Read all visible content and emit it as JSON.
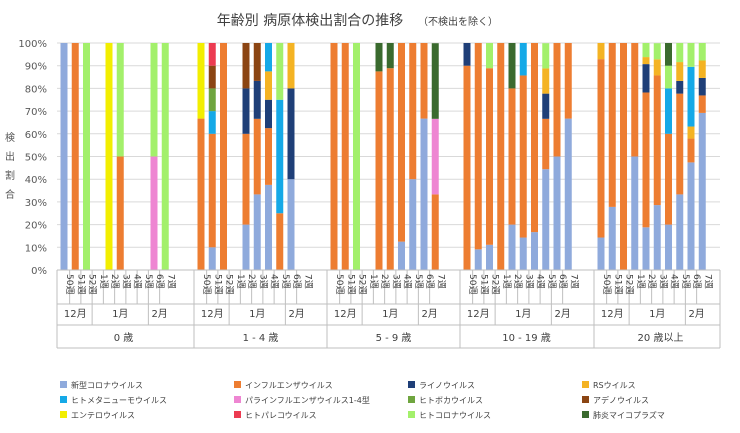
{
  "chart_data": {
    "type": "bar",
    "stacked": "percent",
    "title": "年齢別 病原体検出割合の推移",
    "subtitle": "（不検出を除く）",
    "ylabel": "検出割合",
    "ylim": [
      0,
      100
    ],
    "yticks": [
      "0%",
      "10%",
      "20%",
      "30%",
      "40%",
      "50%",
      "60%",
      "70%",
      "80%",
      "90%",
      "100%"
    ],
    "week_labels": [
      "50週",
      "51週",
      "52週",
      "1週",
      "2週",
      "3週",
      "4週",
      "5週",
      "6週",
      "7週"
    ],
    "month_groups": [
      {
        "label": "12月",
        "start": 0,
        "end": 2
      },
      {
        "label": "1月",
        "start": 3,
        "end": 7
      },
      {
        "label": "2月",
        "start": 8,
        "end": 9
      }
    ],
    "age_groups": [
      "0 歳",
      "1 - 4 歳",
      "5 - 9 歳",
      "10 - 19 歳",
      "20 歳以上"
    ],
    "pathogens": [
      {
        "name": "新型コロナウイルス",
        "color": "#8FAADC"
      },
      {
        "name": "インフルエンザウイルス",
        "color": "#ED7D31"
      },
      {
        "name": "ライノウイルス",
        "color": "#1F3F78"
      },
      {
        "name": "RSウイルス",
        "color": "#F4B323"
      },
      {
        "name": "ヒトメタニューモウイルス",
        "color": "#15A9E7"
      },
      {
        "name": "パラインフルエンザウイルス1-4型",
        "color": "#EE86D2"
      },
      {
        "name": "ヒトボカウイルス",
        "color": "#6FA53F"
      },
      {
        "name": "アデノウイルス",
        "color": "#8B4513"
      },
      {
        "name": "エンテロウイルス",
        "color": "#F2EE00"
      },
      {
        "name": "ヒトパレコウイルス",
        "color": "#EC3B51"
      },
      {
        "name": "ヒトコロナウイルス",
        "color": "#A3F06B"
      },
      {
        "name": "肺炎マイコプラズマ",
        "color": "#3A6A2E"
      }
    ],
    "series_values": [
      [
        {
          "新型コロナウイルス": 100
        },
        {
          "インフルエンザウイルス": 100
        },
        {
          "ヒトコロナウイルス": 100
        },
        {},
        {
          "エンテロウイルス": 100
        },
        {
          "インフルエンザウイルス": 50,
          "ヒトコロナウイルス": 50
        },
        {},
        {},
        {
          "パラインフルエンザウイルス1-4型": 50,
          "ヒトコロナウイルス": 50
        },
        {
          "ヒトコロナウイルス": 100
        }
      ],
      [
        {
          "インフルエンザウイルス": 66.7,
          "エンテロウイルス": 33.3
        },
        {
          "新型コロナウイルス": 10,
          "インフルエンザウイルス": 50,
          "ヒトメタニューモウイルス": 10,
          "ヒトボカウイルス": 10,
          "アデノウイルス": 10,
          "ヒトパレコウイルス": 10
        },
        {
          "インフルエンザウイルス": 100
        },
        {},
        {
          "新型コロナウイルス": 20,
          "インフルエンザウイルス": 40,
          "ライノウイルス": 20,
          "アデノウイルス": 20
        },
        {
          "新型コロナウイルス": 33.3,
          "インフルエンザウイルス": 33.3,
          "ライノウイルス": 16.7,
          "アデノウイルス": 16.7
        },
        {
          "新型コロナウイルス": 37.5,
          "インフルエンザウイルス": 25,
          "ライノウイルス": 12.5,
          "RSウイルス": 12.5,
          "ヒトメタニューモウイルス": 12.5
        },
        {
          "インフルエンザウイルス": 25,
          "ヒトメタニューモウイルス": 50,
          "ヒトコロナウイルス": 25
        },
        {
          "新型コロナウイルス": 40,
          "ライノウイルス": 40,
          "RSウイルス": 20
        },
        {}
      ],
      [
        {
          "インフルエンザウイルス": 100
        },
        {
          "インフルエンザウイルス": 100
        },
        {
          "ヒトコロナウイルス": 100
        },
        {},
        {
          "インフルエンザウイルス": 87.5,
          "肺炎マイコプラズマ": 12.5
        },
        {
          "インフルエンザウイルス": 88.9,
          "肺炎マイコプラズマ": 11.1
        },
        {
          "新型コロナウイルス": 12.5,
          "インフルエンザウイルス": 87.5
        },
        {
          "新型コロナウイルス": 40,
          "インフルエンザウイルス": 60
        },
        {
          "新型コロナウイルス": 66.7,
          "インフルエンザウイルス": 33.3
        },
        {
          "インフルエンザウイルス": 33.3,
          "パラインフルエンザウイルス1-4型": 33.3,
          "肺炎マイコプラズマ": 33.3
        }
      ],
      [
        {
          "インフルエンザウイルス": 90,
          "ライノウイルス": 10
        },
        {
          "新型コロナウイルス": 9.1,
          "インフルエンザウイルス": 90.9
        },
        {
          "新型コロナウイルス": 11.1,
          "インフルエンザウイルス": 77.8,
          "ヒトコロナウイルス": 11.1
        },
        {
          "インフルエンザウイルス": 100
        },
        {
          "新型コロナウイルス": 20,
          "インフルエンザウイルス": 60,
          "肺炎マイコプラズマ": 20
        },
        {
          "新型コロナウイルス": 14.3,
          "インフルエンザウイルス": 71.4,
          "ヒトメタニューモウイルス": 14.3
        },
        {
          "新型コロナウイルス": 16.7,
          "インフルエンザウイルス": 83.3
        },
        {
          "新型コロナウイルス": 44.4,
          "インフルエンザウイルス": 22.2,
          "ライノウイルス": 11.1,
          "RSウイルス": 11.1,
          "ヒトコロナウイルス": 11.1
        },
        {
          "新型コロナウイルス": 50,
          "インフルエンザウイルス": 50
        },
        {
          "新型コロナウイルス": 66.7,
          "インフルエンザウイルス": 33.3
        }
      ],
      [
        {
          "新型コロナウイルス": 14.3,
          "インフルエンザウイルス": 78.6,
          "RSウイルス": 7.1
        },
        {
          "新型コロナウイルス": 27.8,
          "インフルエンザウイルス": 72.2
        },
        {
          "インフルエンザウイルス": 100
        },
        {
          "新型コロナウイルス": 50,
          "インフルエンザウイルス": 50
        },
        {
          "新型コロナウイルス": 18.8,
          "インフルエンザウイルス": 59.4,
          "ライノウイルス": 12.5,
          "RSウイルス": 3.1,
          "ヒトコロナウイルス": 6.2
        },
        {
          "新型コロナウイルス": 28.6,
          "インフルエンザウイルス": 57.1,
          "RSウイルス": 7.1,
          "ヒトコロナウイルス": 7.1
        },
        {
          "新型コロナウイルス": 20,
          "インフルエンザウイルス": 40,
          "ヒトメタニューモウイルス": 20,
          "ヒトコロナウイルス": 10,
          "肺炎マイコプラズマ": 10
        },
        {
          "新型コロナウイルス": 33.3,
          "インフルエンザウイルス": 44.4,
          "ライノウイルス": 5.6,
          "RSウイルス": 8.3,
          "ヒトコロナウイルス": 8.4
        },
        {
          "新型コロナウイルス": 47.4,
          "インフルエンザウイルス": 10.5,
          "ヒトメタニューモウイルス": 26.3,
          "RSウイルス": 5.3,
          "ヒトコロナウイルス": 10.5
        },
        {
          "新型コロナウイルス": 69.2,
          "インフルエンザウイルス": 7.7,
          "ライノウイルス": 7.7,
          "RSウイルス": 7.7,
          "ヒトコロナウイルス": 7.7
        }
      ]
    ]
  }
}
